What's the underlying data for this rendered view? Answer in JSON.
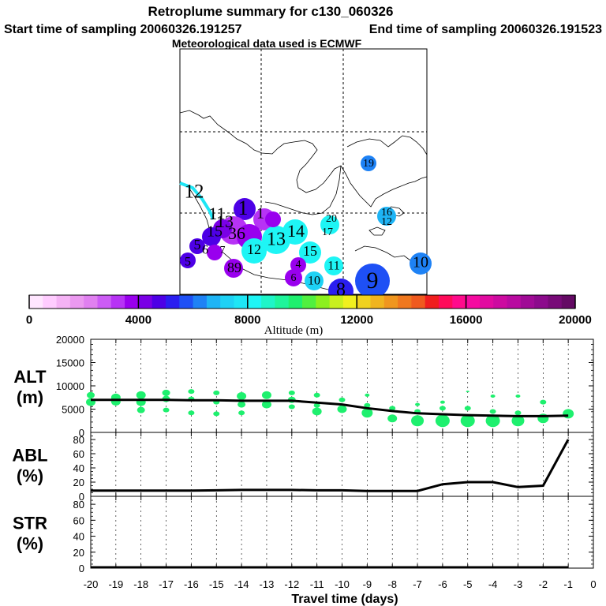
{
  "header": {
    "title": "Retroplume summary for c130_060326",
    "start_label": "Start time of sampling 20060326.191257",
    "end_label": "End time of sampling 20060326.191523",
    "met_label": "Meteorological data used is ECMWF"
  },
  "colorbar": {
    "label": "Altitude (m)",
    "ticks": [
      "0",
      "4000",
      "8000",
      "12000",
      "16000",
      "20000"
    ],
    "min": 0,
    "max": 20000,
    "colors": [
      "#ffe6ff",
      "#ffccff",
      "#f5b3f5",
      "#eb99f0",
      "#e080f0",
      "#cc5cf5",
      "#b733f5",
      "#9900ee",
      "#7a00e6",
      "#4d00e6",
      "#2a1ef0",
      "#1e50f5",
      "#1e82f5",
      "#1eb4f5",
      "#1ed2f5",
      "#1ee6f5",
      "#1ef5f5",
      "#1ef5c8",
      "#1ef59b",
      "#1ef06e",
      "#50f040",
      "#8cf01e",
      "#c8f01e",
      "#f0f01e",
      "#f0d21e",
      "#f0b41e",
      "#f0961e",
      "#f0781e",
      "#f05a1e",
      "#f01e1e",
      "#ff0a5a",
      "#ff0a8c",
      "#f50aa0",
      "#e10aa0",
      "#cd0aa0",
      "#b90aa0",
      "#a00a96",
      "#8c0a8c",
      "#780a78",
      "#640a64"
    ]
  },
  "map": {
    "labels": [
      {
        "t": "12",
        "x": 246,
        "y": 245,
        "s": 25,
        "c": "#1ef5f5"
      },
      {
        "t": "11",
        "x": 275,
        "y": 273,
        "s": 22,
        "c": "#1ef5f5"
      },
      {
        "t": "1",
        "x": 308,
        "y": 266,
        "s": 26,
        "c": "#7a00e6"
      },
      {
        "t": "1",
        "x": 330,
        "y": 272,
        "s": 20,
        "c": "#b733f5"
      },
      {
        "t": "13",
        "x": 285,
        "y": 283,
        "s": 22,
        "c": "#7a00e6"
      },
      {
        "t": "15",
        "x": 272,
        "y": 295,
        "s": 20,
        "c": "#4d00e6"
      },
      {
        "t": "36",
        "x": 300,
        "y": 298,
        "s": 22,
        "c": "#b733f5"
      },
      {
        "t": "13",
        "x": 350,
        "y": 305,
        "s": 24,
        "c": "#1ef5f5"
      },
      {
        "t": "14",
        "x": 375,
        "y": 295,
        "s": 22,
        "c": "#1ef5f5"
      },
      {
        "t": "20",
        "x": 420,
        "y": 278,
        "s": 14,
        "c": "#1ef5f5"
      },
      {
        "t": "17",
        "x": 415,
        "y": 295,
        "s": 14,
        "c": "#1ef5f5"
      },
      {
        "t": "19",
        "x": 467,
        "y": 208,
        "s": 14,
        "c": "#1e82f5"
      },
      {
        "t": "16",
        "x": 490,
        "y": 270,
        "s": 14,
        "c": "#1eb4f5"
      },
      {
        "t": "12",
        "x": 490,
        "y": 282,
        "s": 14,
        "c": "#1eb4f5"
      },
      {
        "t": "12",
        "x": 322,
        "y": 318,
        "s": 18,
        "c": "#1ef5f5"
      },
      {
        "t": "15",
        "x": 393,
        "y": 320,
        "s": 18,
        "c": "#1ef5f5"
      },
      {
        "t": "4",
        "x": 378,
        "y": 336,
        "s": 14,
        "c": "#9900ee"
      },
      {
        "t": "11",
        "x": 423,
        "y": 338,
        "s": 16,
        "c": "#1ef5f5"
      },
      {
        "t": "6",
        "x": 372,
        "y": 353,
        "s": 14,
        "c": "#9900ee"
      },
      {
        "t": "10",
        "x": 398,
        "y": 357,
        "s": 16,
        "c": "#1ed2f5"
      },
      {
        "t": "9",
        "x": 472,
        "y": 358,
        "s": 30,
        "c": "#1e50f5"
      },
      {
        "t": "8",
        "x": 432,
        "y": 369,
        "s": 24,
        "c": "#2a1ef0"
      },
      {
        "t": "10",
        "x": 533,
        "y": 334,
        "s": 20,
        "c": "#1e82f5"
      },
      {
        "t": "89",
        "x": 297,
        "y": 341,
        "s": 18,
        "c": "#9900ee"
      },
      {
        "t": "5",
        "x": 250,
        "y": 312,
        "s": 18,
        "c": "#4d00e6"
      },
      {
        "t": "6",
        "x": 260,
        "y": 318,
        "s": 16,
        "c": "#7a00e6"
      },
      {
        "t": "5",
        "x": 238,
        "y": 333,
        "s": 16,
        "c": "#4d00e6"
      },
      {
        "t": "7",
        "x": 282,
        "y": 318,
        "s": 14,
        "c": "#7a00e6"
      }
    ]
  },
  "chart_data": [
    {
      "type": "scatter",
      "name": "ALT",
      "ylabel": "ALT\n(m)",
      "ylabel_line1": "ALT",
      "ylabel_line2": "(m)",
      "ylim": [
        0,
        20000
      ],
      "yticks": [
        "0",
        "5000",
        "10000",
        "15000",
        "20000"
      ],
      "xlim": [
        -20,
        0
      ],
      "line_x": [
        -20,
        -19,
        -18,
        -17,
        -16,
        -15,
        -14,
        -13,
        -12,
        -11,
        -10,
        -9,
        -8,
        -7,
        -6,
        -5,
        -4,
        -3,
        -2,
        -1
      ],
      "line_y": [
        7000,
        7000,
        7000,
        7000,
        6900,
        6900,
        6800,
        6800,
        6800,
        6400,
        6000,
        5200,
        4600,
        4100,
        3900,
        3700,
        3600,
        3500,
        3500,
        3600
      ],
      "points": [
        {
          "x": -20,
          "y": 8000,
          "r": 4
        },
        {
          "x": -20,
          "y": 6500,
          "r": 5
        },
        {
          "x": -19,
          "y": 7500,
          "r": 5
        },
        {
          "x": -19,
          "y": 6600,
          "r": 5
        },
        {
          "x": -18,
          "y": 8000,
          "r": 5
        },
        {
          "x": -18,
          "y": 6500,
          "r": 5
        },
        {
          "x": -18,
          "y": 4800,
          "r": 4
        },
        {
          "x": -17,
          "y": 8500,
          "r": 4
        },
        {
          "x": -17,
          "y": 7200,
          "r": 4
        },
        {
          "x": -17,
          "y": 4800,
          "r": 3
        },
        {
          "x": -16,
          "y": 8800,
          "r": 3
        },
        {
          "x": -16,
          "y": 7200,
          "r": 3
        },
        {
          "x": -16,
          "y": 4200,
          "r": 3
        },
        {
          "x": -15,
          "y": 8500,
          "r": 3
        },
        {
          "x": -15,
          "y": 6500,
          "r": 3
        },
        {
          "x": -15,
          "y": 4000,
          "r": 3
        },
        {
          "x": -14,
          "y": 7800,
          "r": 5
        },
        {
          "x": -14,
          "y": 6000,
          "r": 4
        },
        {
          "x": -14,
          "y": 4200,
          "r": 3
        },
        {
          "x": -13,
          "y": 8000,
          "r": 5
        },
        {
          "x": -13,
          "y": 6000,
          "r": 5
        },
        {
          "x": -12,
          "y": 8500,
          "r": 3
        },
        {
          "x": -12,
          "y": 7000,
          "r": 4
        },
        {
          "x": -12,
          "y": 5500,
          "r": 3
        },
        {
          "x": -11,
          "y": 8000,
          "r": 3
        },
        {
          "x": -11,
          "y": 5800,
          "r": 3
        },
        {
          "x": -11,
          "y": 4500,
          "r": 5
        },
        {
          "x": -10,
          "y": 7000,
          "r": 3
        },
        {
          "x": -10,
          "y": 5000,
          "r": 5
        },
        {
          "x": -9,
          "y": 8000,
          "r": 2
        },
        {
          "x": -9,
          "y": 5800,
          "r": 3
        },
        {
          "x": -9,
          "y": 4200,
          "r": 6
        },
        {
          "x": -8,
          "y": 5200,
          "r": 3
        },
        {
          "x": -8,
          "y": 3000,
          "r": 5
        },
        {
          "x": -7,
          "y": 6000,
          "r": 2
        },
        {
          "x": -7,
          "y": 4500,
          "r": 3
        },
        {
          "x": -7,
          "y": 2500,
          "r": 7
        },
        {
          "x": -6,
          "y": 6500,
          "r": 2
        },
        {
          "x": -6,
          "y": 5200,
          "r": 3
        },
        {
          "x": -6,
          "y": 2500,
          "r": 8
        },
        {
          "x": -5,
          "y": 8800,
          "r": 1
        },
        {
          "x": -5,
          "y": 5200,
          "r": 3
        },
        {
          "x": -5,
          "y": 2500,
          "r": 8
        },
        {
          "x": -4,
          "y": 7800,
          "r": 2
        },
        {
          "x": -4,
          "y": 4500,
          "r": 3
        },
        {
          "x": -4,
          "y": 2500,
          "r": 8
        },
        {
          "x": -3,
          "y": 7800,
          "r": 2
        },
        {
          "x": -3,
          "y": 4200,
          "r": 3
        },
        {
          "x": -3,
          "y": 2500,
          "r": 7
        },
        {
          "x": -2,
          "y": 6500,
          "r": 3
        },
        {
          "x": -2,
          "y": 3000,
          "r": 6
        },
        {
          "x": -1,
          "y": 4000,
          "r": 6
        }
      ]
    },
    {
      "type": "line",
      "name": "ABL",
      "ylabel_line1": "ABL",
      "ylabel_line2": "(%)",
      "ylim": [
        0,
        90
      ],
      "yticks": [
        "0",
        "20",
        "40",
        "60",
        "80"
      ],
      "xlim": [
        -20,
        0
      ],
      "x": [
        -20,
        -19,
        -18,
        -17,
        -16,
        -15,
        -14,
        -13,
        -12,
        -11,
        -10,
        -9,
        -8,
        -7,
        -6,
        -5,
        -4,
        -3,
        -2,
        -1
      ],
      "y": [
        8,
        8,
        8,
        8,
        8,
        8.5,
        9,
        9,
        9,
        8.5,
        8.5,
        7.5,
        7.5,
        7.5,
        17,
        20,
        20,
        13,
        15,
        80
      ]
    },
    {
      "type": "line",
      "name": "STR",
      "ylabel_line1": "STR",
      "ylabel_line2": "(%)",
      "ylim": [
        0,
        90
      ],
      "yticks": [
        "0",
        "20",
        "40",
        "60",
        "80"
      ],
      "xlim": [
        -20,
        0
      ],
      "x": [
        -20,
        -19,
        -18,
        -17,
        -16,
        -15,
        -14,
        -13,
        -12,
        -11,
        -10,
        -9,
        -8,
        -7,
        -6,
        -5,
        -4,
        -3,
        -2,
        -1
      ],
      "y": [
        1,
        1,
        1,
        1,
        1,
        1,
        1,
        1,
        1,
        1,
        1,
        1,
        1,
        1,
        1,
        1,
        1,
        1,
        1,
        1
      ]
    }
  ],
  "xaxis": {
    "label": "Travel time (days)",
    "ticks": [
      "-20",
      "-19",
      "-18",
      "-17",
      "-16",
      "-15",
      "-14",
      "-13",
      "-12",
      "-11",
      "-10",
      "-9",
      "-8",
      "-7",
      "-6",
      "-5",
      "-4",
      "-3",
      "-2",
      "-1",
      "0"
    ]
  },
  "colors": {
    "alt_points": "#1ef06e",
    "line": "#000000",
    "grid": "#000000"
  }
}
